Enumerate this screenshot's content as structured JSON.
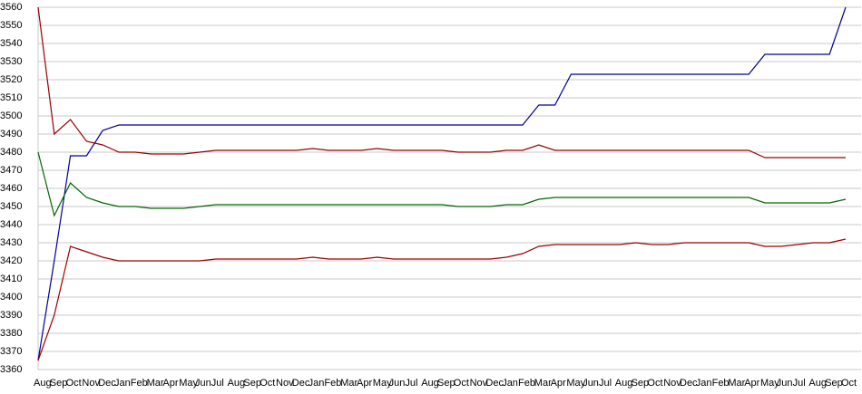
{
  "chart_data": {
    "type": "line",
    "categories": [
      "Aug",
      "Sep",
      "Oct",
      "Nov",
      "Dec",
      "Jan",
      "Feb",
      "Mar",
      "Apr",
      "May",
      "Jun",
      "Jul",
      "Aug",
      "Sep",
      "Oct",
      "Nov",
      "Dec",
      "Jan",
      "Feb",
      "Mar",
      "Apr",
      "May",
      "Jun",
      "Jul",
      "Aug",
      "Sep",
      "Oct",
      "Nov",
      "Dec",
      "Jan",
      "Feb",
      "Mar",
      "Apr",
      "May",
      "Jun",
      "Jul",
      "Aug",
      "Sep",
      "Oct",
      "Nov",
      "Dec",
      "Jan",
      "Feb",
      "Mar",
      "Apr",
      "May",
      "Jun",
      "Jul",
      "Aug",
      "Sep",
      "Oct"
    ],
    "series": [
      {
        "color": "#000099",
        "values": [
          3365,
          3420,
          3478,
          3478,
          3492,
          3495,
          3495,
          3495,
          3495,
          3495,
          3495,
          3495,
          3495,
          3495,
          3495,
          3495,
          3495,
          3495,
          3495,
          3495,
          3495,
          3495,
          3495,
          3495,
          3495,
          3495,
          3495,
          3495,
          3495,
          3495,
          3495,
          3506,
          3506,
          3523,
          3523,
          3523,
          3523,
          3523,
          3523,
          3523,
          3523,
          3523,
          3523,
          3523,
          3523,
          3534,
          3534,
          3534,
          3534,
          3534,
          3560
        ]
      },
      {
        "color": "#990000",
        "values": [
          3560,
          3490,
          3498,
          3486,
          3484,
          3480,
          3480,
          3479,
          3479,
          3479,
          3480,
          3481,
          3481,
          3481,
          3481,
          3481,
          3481,
          3482,
          3481,
          3481,
          3481,
          3482,
          3481,
          3481,
          3481,
          3481,
          3480,
          3480,
          3480,
          3481,
          3481,
          3484,
          3481,
          3481,
          3481,
          3481,
          3481,
          3481,
          3481,
          3481,
          3481,
          3481,
          3481,
          3481,
          3481,
          3477,
          3477,
          3477,
          3477,
          3477,
          3477
        ]
      },
      {
        "color": "#006600",
        "values": [
          3480,
          3445,
          3463,
          3455,
          3452,
          3450,
          3450,
          3449,
          3449,
          3449,
          3450,
          3451,
          3451,
          3451,
          3451,
          3451,
          3451,
          3451,
          3451,
          3451,
          3451,
          3451,
          3451,
          3451,
          3451,
          3451,
          3450,
          3450,
          3450,
          3451,
          3451,
          3454,
          3455,
          3455,
          3455,
          3455,
          3455,
          3455,
          3455,
          3455,
          3455,
          3455,
          3455,
          3455,
          3455,
          3452,
          3452,
          3452,
          3452,
          3452,
          3454
        ]
      },
      {
        "color": "#990000",
        "values": [
          3365,
          3390,
          3428,
          3425,
          3422,
          3420,
          3420,
          3420,
          3420,
          3420,
          3420,
          3421,
          3421,
          3421,
          3421,
          3421,
          3421,
          3422,
          3421,
          3421,
          3421,
          3422,
          3421,
          3421,
          3421,
          3421,
          3421,
          3421,
          3421,
          3422,
          3424,
          3428,
          3429,
          3429,
          3429,
          3429,
          3429,
          3430,
          3429,
          3429,
          3430,
          3430,
          3430,
          3430,
          3430,
          3428,
          3428,
          3429,
          3430,
          3430,
          3432
        ]
      }
    ],
    "ylim": [
      3360,
      3560
    ],
    "yticks": [
      3360,
      3370,
      3380,
      3390,
      3400,
      3410,
      3420,
      3430,
      3440,
      3450,
      3460,
      3470,
      3480,
      3490,
      3500,
      3510,
      3520,
      3530,
      3540,
      3550,
      3560
    ],
    "grid": true
  }
}
